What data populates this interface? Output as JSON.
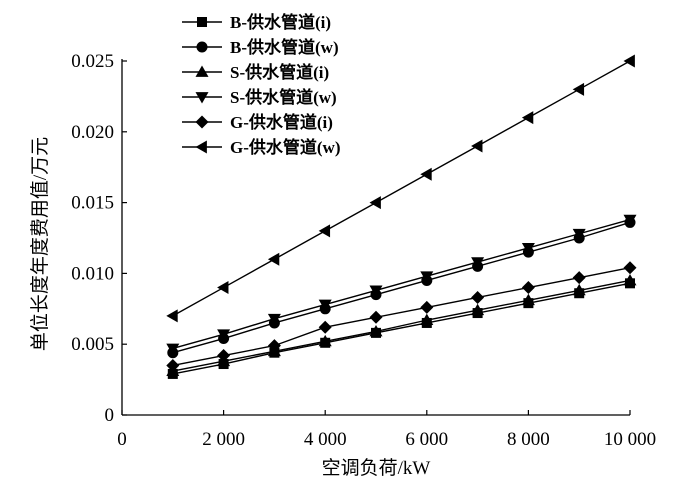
{
  "chart_data": {
    "type": "line",
    "xlabel": "空调负荷/kW",
    "ylabel": "单位长度年度费用值/万元",
    "xlim": [
      0,
      10000
    ],
    "ylim": [
      0,
      0.025
    ],
    "x_ticks": [
      0,
      2000,
      4000,
      6000,
      8000,
      10000
    ],
    "x_tick_labels": [
      "0",
      "2 000",
      "4 000",
      "6 000",
      "8 000",
      "10 000"
    ],
    "y_ticks": [
      0,
      0.005,
      0.01,
      0.015,
      0.02,
      0.025
    ],
    "y_tick_labels": [
      "0",
      "0.005",
      "0.010",
      "0.015",
      "0.020",
      "0.025"
    ],
    "grid": false,
    "legend_position": "top-left",
    "x": [
      1000,
      2000,
      3000,
      4000,
      5000,
      6000,
      7000,
      8000,
      9000,
      10000
    ],
    "series": [
      {
        "name": "B-供水管道(i)",
        "marker": "square",
        "values": [
          0.0029,
          0.0036,
          0.0044,
          0.0051,
          0.0058,
          0.0065,
          0.0072,
          0.0079,
          0.0086,
          0.0093
        ]
      },
      {
        "name": "B-供水管道(w)",
        "marker": "circle",
        "values": [
          0.0044,
          0.0054,
          0.0065,
          0.0075,
          0.0085,
          0.0095,
          0.0105,
          0.0115,
          0.0125,
          0.0136
        ]
      },
      {
        "name": "S-供水管道(i)",
        "marker": "triangle-up",
        "values": [
          0.0031,
          0.0038,
          0.0045,
          0.0052,
          0.0059,
          0.0067,
          0.0074,
          0.0081,
          0.0088,
          0.0095
        ]
      },
      {
        "name": "S-供水管道(w)",
        "marker": "triangle-down",
        "values": [
          0.0047,
          0.0057,
          0.0068,
          0.0078,
          0.0088,
          0.0098,
          0.0108,
          0.0118,
          0.0128,
          0.0138
        ]
      },
      {
        "name": "G-供水管道(i)",
        "marker": "diamond",
        "values": [
          0.0035,
          0.0042,
          0.0049,
          0.0062,
          0.0069,
          0.0076,
          0.0083,
          0.009,
          0.0097,
          0.0104
        ]
      },
      {
        "name": "G-供水管道(w)",
        "marker": "triangle-left",
        "values": [
          0.007,
          0.009,
          0.011,
          0.013,
          0.015,
          0.017,
          0.019,
          0.021,
          0.023,
          0.025
        ]
      }
    ]
  }
}
